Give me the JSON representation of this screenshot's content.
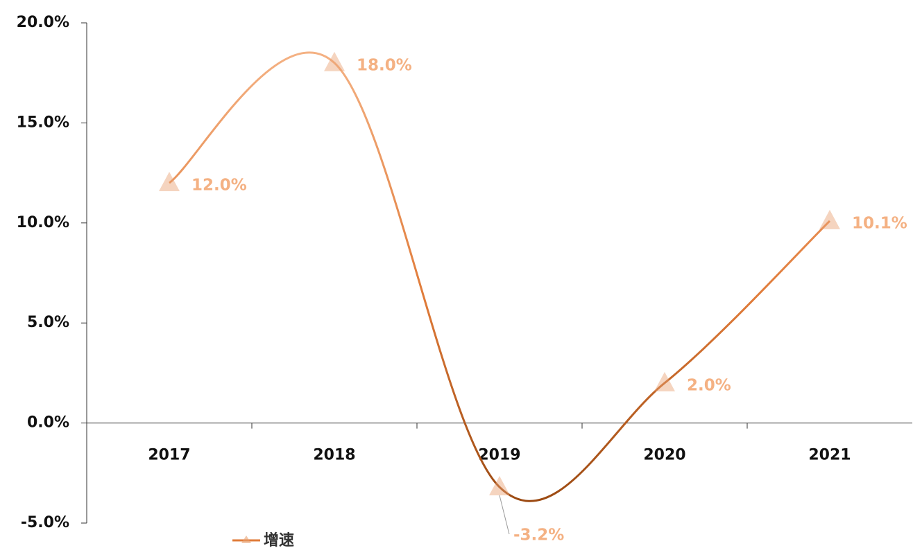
{
  "chart_data": {
    "type": "line",
    "categories": [
      "2017",
      "2018",
      "2019",
      "2020",
      "2021"
    ],
    "series": [
      {
        "name": "增速",
        "color": "#e07b39",
        "values": [
          12.0,
          18.0,
          -3.2,
          2.0,
          10.1
        ],
        "value_labels": [
          "12.0%",
          "18.0%",
          "-3.2%",
          "2.0%",
          "10.1%"
        ]
      }
    ],
    "ylim": [
      -5,
      20
    ],
    "yticks": [
      {
        "value": -5,
        "label": "-5.0%"
      },
      {
        "value": 0,
        "label": "0.0%"
      },
      {
        "value": 5,
        "label": "5.0%"
      },
      {
        "value": 10,
        "label": "10.0%"
      },
      {
        "value": 15,
        "label": "15.0%"
      },
      {
        "value": 20,
        "label": "20.0%"
      }
    ],
    "smooth": true
  }
}
